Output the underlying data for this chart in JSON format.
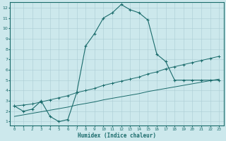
{
  "xlabel": "Humidex (Indice chaleur)",
  "bg_color": "#cce8ec",
  "grid_color": "#aacdd4",
  "line_color": "#1a6b6b",
  "xlim": [
    -0.5,
    23.5
  ],
  "ylim": [
    0.6,
    12.5
  ],
  "xticks": [
    0,
    1,
    2,
    3,
    4,
    5,
    6,
    7,
    8,
    9,
    10,
    11,
    12,
    13,
    14,
    15,
    16,
    17,
    18,
    19,
    20,
    21,
    22,
    23
  ],
  "yticks": [
    1,
    2,
    3,
    4,
    5,
    6,
    7,
    8,
    9,
    10,
    11,
    12
  ],
  "series1_x": [
    0,
    1,
    2,
    3,
    4,
    5,
    6,
    7,
    8,
    9,
    10,
    11,
    12,
    13,
    14,
    15,
    16,
    17,
    18,
    19,
    20,
    21,
    22,
    23
  ],
  "series1_y": [
    2.5,
    2.0,
    2.2,
    3.0,
    1.5,
    1.0,
    1.2,
    3.8,
    8.3,
    9.5,
    11.0,
    11.5,
    12.3,
    11.8,
    11.5,
    10.8,
    7.5,
    6.8,
    5.0,
    5.0,
    5.0,
    5.0,
    5.0,
    5.0
  ],
  "series2_x": [
    0,
    1,
    2,
    3,
    4,
    5,
    6,
    7,
    8,
    9,
    10,
    11,
    12,
    13,
    14,
    15,
    16,
    17,
    18,
    19,
    20,
    21,
    22,
    23
  ],
  "series2_y": [
    2.5,
    2.6,
    2.7,
    2.9,
    3.1,
    3.3,
    3.5,
    3.8,
    4.0,
    4.2,
    4.5,
    4.7,
    4.9,
    5.1,
    5.3,
    5.6,
    5.8,
    6.1,
    6.3,
    6.5,
    6.7,
    6.9,
    7.1,
    7.3
  ],
  "series3_x": [
    0,
    1,
    2,
    3,
    4,
    5,
    6,
    7,
    8,
    9,
    10,
    11,
    12,
    13,
    14,
    15,
    16,
    17,
    18,
    19,
    20,
    21,
    22,
    23
  ],
  "series3_y": [
    1.5,
    1.65,
    1.8,
    1.95,
    2.1,
    2.25,
    2.4,
    2.6,
    2.75,
    2.9,
    3.1,
    3.25,
    3.4,
    3.55,
    3.7,
    3.9,
    4.05,
    4.2,
    4.35,
    4.5,
    4.65,
    4.8,
    4.95,
    5.1
  ]
}
